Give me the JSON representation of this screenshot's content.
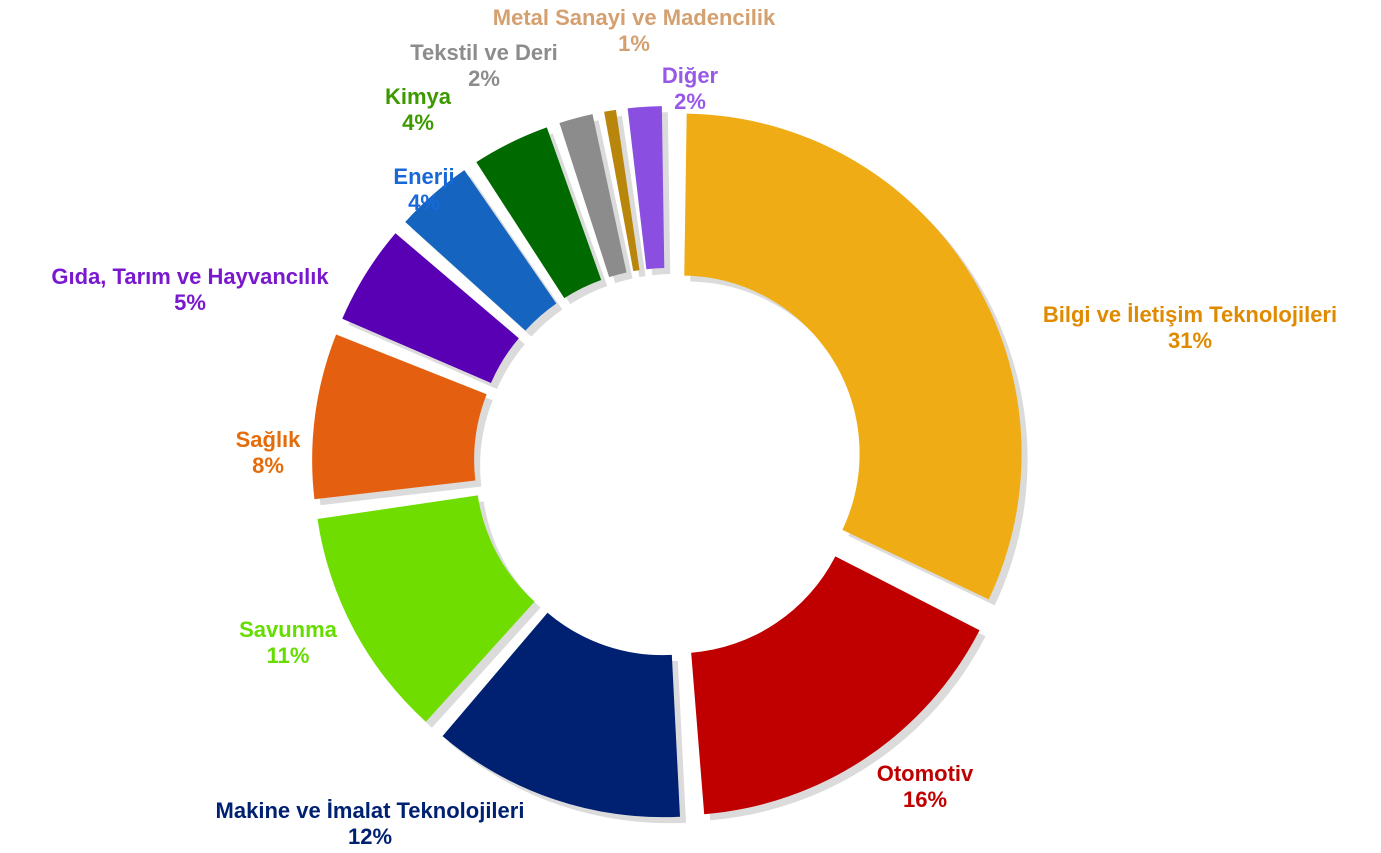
{
  "chart_data": {
    "type": "pie",
    "donut": true,
    "exploded": true,
    "title": "",
    "slices": [
      {
        "label": "Bilgi ve İletişim Teknolojileri",
        "value": 31,
        "value_label": "31%",
        "color": "#F0AC14"
      },
      {
        "label": "Otomotiv",
        "value": 16,
        "value_label": "16%",
        "color": "#C00000"
      },
      {
        "label": "Makine ve İmalat Teknolojileri",
        "value": 12,
        "value_label": "12%",
        "color": "#002072"
      },
      {
        "label": "Savunma",
        "value": 11,
        "value_label": "11%",
        "color": "#6FDD00"
      },
      {
        "label": "Sağlık",
        "value": 8,
        "value_label": "8%",
        "color": "#E46010"
      },
      {
        "label": "Gıda, Tarım ve Hayvancılık",
        "value": 5,
        "value_label": "5%",
        "color": "#5A00B4"
      },
      {
        "label": "Enerji",
        "value": 4,
        "value_label": "4%",
        "color": "#1565C0"
      },
      {
        "label": "Kimya",
        "value": 4,
        "value_label": "4%",
        "color": "#006A00"
      },
      {
        "label": "Tekstil ve Deri",
        "value": 2,
        "value_label": "2%",
        "color": "#8C8C8C"
      },
      {
        "label": "Metal Sanayi ve Madencilik",
        "value": 1,
        "value_label": "1%",
        "color": "#B8860B"
      },
      {
        "label": "Diğer",
        "value": 2,
        "value_label": "2%",
        "color": "#8A4FE0"
      }
    ],
    "label_colors": {
      "Bilgi ve İletişim Teknolojileri": "#E08A00",
      "Otomotiv": "#C00000",
      "Makine ve İmalat Teknolojileri": "#002072",
      "Savunma": "#66DD00",
      "Sağlık": "#E46C0A",
      "Gıda, Tarım ve Hayvancılık": "#7A18D0",
      "Enerji": "#1868D8",
      "Kimya": "#3C9A00",
      "Tekstil ve Deri": "#8C8C8C",
      "Metal Sanayi ve Madencilik": "#D4A070",
      "Diğer": "#9858E8"
    }
  }
}
